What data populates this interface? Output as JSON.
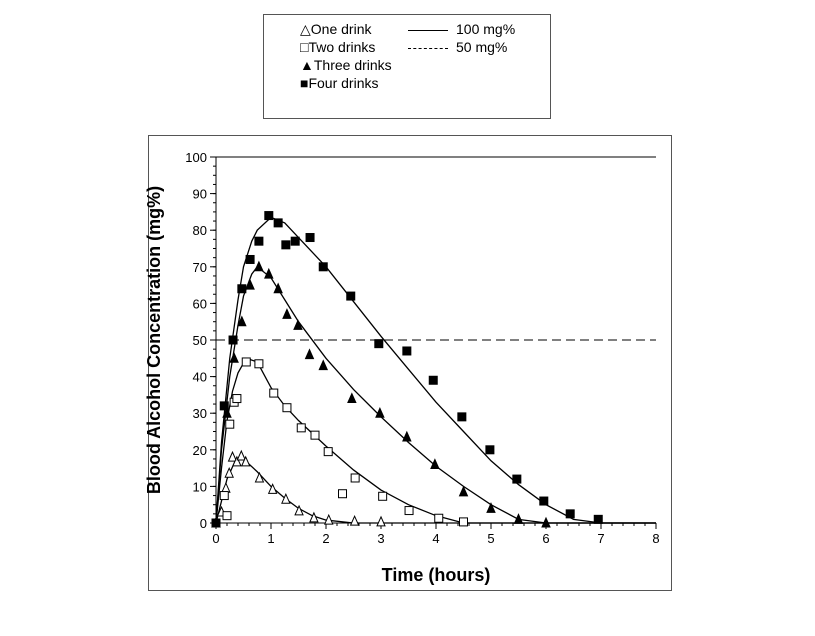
{
  "chart_data": {
    "type": "scatter",
    "xlabel": "Time (hours)",
    "ylabel": "Blood Alcohol Concentration (mg%)",
    "xlim": [
      0,
      8
    ],
    "ylim": [
      0,
      100
    ],
    "xticks": [
      "0",
      "1",
      "2",
      "3",
      "4",
      "5",
      "6",
      "7",
      "8"
    ],
    "yticks": [
      "0",
      "10",
      "20",
      "30",
      "40",
      "50",
      "60",
      "70",
      "80",
      "90",
      "100"
    ],
    "grid": false,
    "legend_placement": "top, outside",
    "reference_lines": [
      {
        "name": "100 mg%",
        "y": 100,
        "style": "solid"
      },
      {
        "name": "50 mg%",
        "y": 50,
        "style": "dashed"
      }
    ],
    "series": [
      {
        "name": "One drink",
        "marker": "open-triangle",
        "points": [
          [
            0,
            0
          ],
          [
            0.1,
            3
          ],
          [
            0.18,
            9.5
          ],
          [
            0.24,
            13.6
          ],
          [
            0.3,
            18
          ],
          [
            0.38,
            16.7
          ],
          [
            0.46,
            18.3
          ],
          [
            0.54,
            16.7
          ],
          [
            0.79,
            12.3
          ],
          [
            1.03,
            9.2
          ],
          [
            1.27,
            6.5
          ],
          [
            1.51,
            3.3
          ],
          [
            1.78,
            1.4
          ],
          [
            2.05,
            0.8
          ],
          [
            2.52,
            0.5
          ],
          [
            3.0,
            0.3
          ]
        ],
        "fit": [
          [
            0,
            0
          ],
          [
            0.1,
            6
          ],
          [
            0.2,
            12
          ],
          [
            0.35,
            17
          ],
          [
            0.5,
            17.5
          ],
          [
            0.75,
            14
          ],
          [
            1,
            10
          ],
          [
            1.25,
            6.8
          ],
          [
            1.5,
            4
          ],
          [
            1.75,
            2
          ],
          [
            2,
            0.8
          ],
          [
            2.5,
            0
          ],
          [
            8,
            0
          ]
        ]
      },
      {
        "name": "Two drinks",
        "marker": "open-square",
        "points": [
          [
            0,
            0
          ],
          [
            0.2,
            2
          ],
          [
            0.15,
            7.5
          ],
          [
            0.25,
            27
          ],
          [
            0.33,
            33
          ],
          [
            0.38,
            34
          ],
          [
            0.55,
            44
          ],
          [
            0.78,
            43.5
          ],
          [
            1.05,
            35.5
          ],
          [
            1.29,
            31.5
          ],
          [
            1.55,
            26
          ],
          [
            1.8,
            24
          ],
          [
            2.04,
            19.5
          ],
          [
            2.3,
            8
          ],
          [
            2.53,
            12.3
          ],
          [
            3.03,
            7.3
          ],
          [
            3.51,
            3.4
          ],
          [
            4.05,
            1.3
          ],
          [
            4.5,
            0.3
          ]
        ],
        "fit": [
          [
            0,
            0
          ],
          [
            0.1,
            15
          ],
          [
            0.2,
            28
          ],
          [
            0.3,
            36
          ],
          [
            0.4,
            41
          ],
          [
            0.55,
            45
          ],
          [
            0.75,
            44
          ],
          [
            1,
            37
          ],
          [
            1.25,
            32
          ],
          [
            1.5,
            28
          ],
          [
            2,
            21
          ],
          [
            2.5,
            14.5
          ],
          [
            3,
            9
          ],
          [
            3.5,
            5
          ],
          [
            4,
            2
          ],
          [
            4.5,
            0
          ],
          [
            8,
            0
          ]
        ]
      },
      {
        "name": "Three drinks",
        "marker": "filled-triangle",
        "points": [
          [
            0,
            0
          ],
          [
            0.2,
            30
          ],
          [
            0.33,
            45
          ],
          [
            0.47,
            55
          ],
          [
            0.62,
            65
          ],
          [
            0.78,
            70
          ],
          [
            0.96,
            68
          ],
          [
            1.13,
            64
          ],
          [
            1.29,
            57
          ],
          [
            1.49,
            54
          ],
          [
            1.7,
            46
          ],
          [
            1.95,
            43
          ],
          [
            2.47,
            34
          ],
          [
            2.98,
            30
          ],
          [
            3.47,
            23.5
          ],
          [
            3.98,
            16
          ],
          [
            4.5,
            8.5
          ],
          [
            5,
            4
          ],
          [
            5.5,
            1
          ],
          [
            6,
            0
          ]
        ],
        "fit": [
          [
            0,
            0
          ],
          [
            0.1,
            20
          ],
          [
            0.25,
            40
          ],
          [
            0.4,
            54
          ],
          [
            0.5,
            62
          ],
          [
            0.65,
            68
          ],
          [
            0.75,
            70
          ],
          [
            1,
            67
          ],
          [
            1.25,
            61
          ],
          [
            1.5,
            55
          ],
          [
            2,
            45
          ],
          [
            2.5,
            36.5
          ],
          [
            3,
            29
          ],
          [
            3.5,
            22
          ],
          [
            4,
            15.5
          ],
          [
            4.5,
            10
          ],
          [
            5,
            5
          ],
          [
            5.5,
            1
          ],
          [
            6,
            0
          ],
          [
            8,
            0
          ]
        ]
      },
      {
        "name": "Four drinks",
        "marker": "filled-square",
        "points": [
          [
            0,
            0
          ],
          [
            0.15,
            32
          ],
          [
            0.31,
            50
          ],
          [
            0.47,
            64
          ],
          [
            0.62,
            72
          ],
          [
            0.78,
            77
          ],
          [
            0.96,
            84
          ],
          [
            1.13,
            82
          ],
          [
            1.27,
            76
          ],
          [
            1.44,
            77
          ],
          [
            1.71,
            78
          ],
          [
            1.95,
            70
          ],
          [
            2.45,
            62
          ],
          [
            2.96,
            49
          ],
          [
            3.47,
            47
          ],
          [
            3.95,
            39
          ],
          [
            4.47,
            29
          ],
          [
            4.98,
            20
          ],
          [
            5.47,
            12
          ],
          [
            5.96,
            6
          ],
          [
            6.44,
            2.5
          ],
          [
            6.95,
            1
          ]
        ],
        "fit": [
          [
            0,
            0
          ],
          [
            0.1,
            22
          ],
          [
            0.25,
            45
          ],
          [
            0.4,
            61
          ],
          [
            0.5,
            70
          ],
          [
            0.65,
            77
          ],
          [
            0.75,
            80
          ],
          [
            1,
            83.5
          ],
          [
            1.25,
            82
          ],
          [
            1.5,
            78
          ],
          [
            2,
            70
          ],
          [
            2.5,
            60.5
          ],
          [
            3,
            51
          ],
          [
            3.5,
            42
          ],
          [
            4,
            33
          ],
          [
            4.5,
            25
          ],
          [
            5,
            17
          ],
          [
            5.5,
            10.5
          ],
          [
            6,
            5
          ],
          [
            6.5,
            1
          ],
          [
            7,
            0
          ],
          [
            8,
            0
          ]
        ]
      }
    ]
  }
}
